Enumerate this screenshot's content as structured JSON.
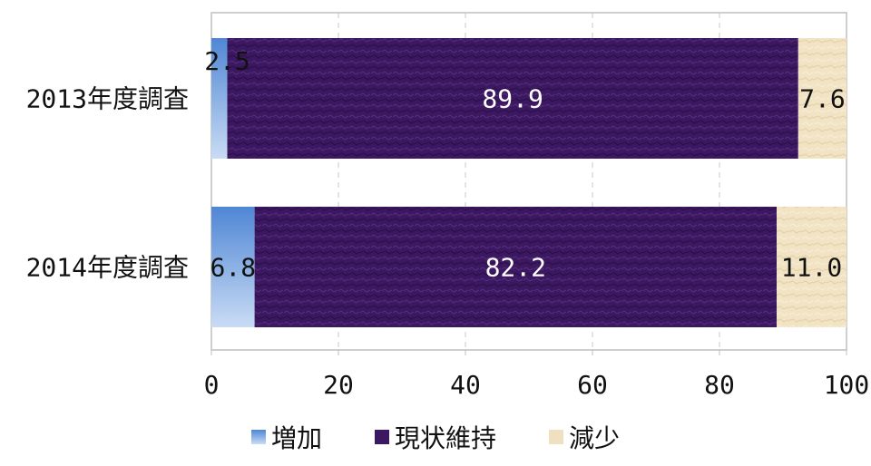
{
  "chart_data": {
    "type": "bar",
    "orientation": "horizontal",
    "stacked": true,
    "categories": [
      "2013年度調査",
      "2014年度調査"
    ],
    "series": [
      {
        "name": "増加",
        "values": [
          2.5,
          6.8
        ],
        "labels": [
          "2.5",
          "6.8"
        ],
        "color": "#5b8fd6"
      },
      {
        "name": "現状維持",
        "values": [
          89.9,
          82.2
        ],
        "labels": [
          "89.9",
          "82.2"
        ],
        "color": "#3f1a63"
      },
      {
        "name": "減少",
        "values": [
          7.6,
          11.0
        ],
        "labels": [
          "7.6",
          "11.0"
        ],
        "color": "#efe0bf"
      }
    ],
    "xlim": [
      0,
      100
    ],
    "xticks": [
      "0",
      "20",
      "40",
      "60",
      "80",
      "100"
    ],
    "grid": true,
    "legend_position": "bottom"
  }
}
